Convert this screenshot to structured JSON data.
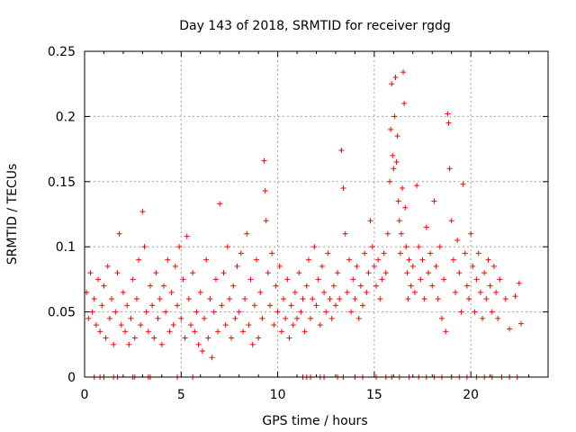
{
  "chart_data": {
    "type": "scatter",
    "title": "Day 143 of 2018, SRMTID for receiver rgdg",
    "xlabel": "GPS time / hours",
    "ylabel": "SRMTID / TECUs",
    "xlim": [
      0,
      24
    ],
    "ylim": [
      0,
      0.25
    ],
    "grid": true,
    "marker": "plus",
    "series": [
      {
        "name": "SRMTID",
        "color": "#ff0000",
        "points": [
          [
            0.1,
            0.065
          ],
          [
            0.2,
            0.045
          ],
          [
            0.3,
            0.08
          ],
          [
            0.4,
            0.05
          ],
          [
            0.5,
            0.06
          ],
          [
            0.6,
            0.04
          ],
          [
            0.7,
            0.075
          ],
          [
            0.8,
            0.035
          ],
          [
            0.9,
            0.055
          ],
          [
            1.0,
            0.07
          ],
          [
            1.1,
            0.03
          ],
          [
            1.2,
            0.085
          ],
          [
            1.3,
            0.045
          ],
          [
            1.4,
            0.06
          ],
          [
            1.5,
            0.025
          ],
          [
            1.6,
            0.05
          ],
          [
            1.7,
            0.08
          ],
          [
            1.8,
            0.11
          ],
          [
            1.9,
            0.04
          ],
          [
            2.0,
            0.065
          ],
          [
            2.1,
            0.035
          ],
          [
            2.2,
            0.055
          ],
          [
            2.3,
            0.025
          ],
          [
            2.4,
            0.045
          ],
          [
            2.5,
            0.075
          ],
          [
            2.6,
            0.03
          ],
          [
            2.7,
            0.06
          ],
          [
            2.8,
            0.09
          ],
          [
            2.9,
            0.04
          ],
          [
            3.0,
            0.127
          ],
          [
            3.1,
            0.1
          ],
          [
            3.2,
            0.05
          ],
          [
            3.3,
            0.035
          ],
          [
            3.4,
            0.07
          ],
          [
            3.5,
            0.055
          ],
          [
            3.6,
            0.03
          ],
          [
            3.7,
            0.08
          ],
          [
            3.8,
            0.045
          ],
          [
            3.9,
            0.06
          ],
          [
            4.0,
            0.025
          ],
          [
            4.1,
            0.07
          ],
          [
            4.2,
            0.05
          ],
          [
            4.3,
            0.09
          ],
          [
            4.4,
            0.035
          ],
          [
            4.5,
            0.065
          ],
          [
            4.6,
            0.04
          ],
          [
            4.7,
            0.085
          ],
          [
            4.8,
            0.055
          ],
          [
            4.9,
            0.1
          ],
          [
            5.0,
            0.045
          ],
          [
            5.1,
            0.075
          ],
          [
            5.2,
            0.03
          ],
          [
            5.3,
            0.108
          ],
          [
            5.4,
            0.06
          ],
          [
            5.5,
            0.04
          ],
          [
            5.6,
            0.08
          ],
          [
            5.7,
            0.035
          ],
          [
            5.8,
            0.05
          ],
          [
            5.9,
            0.025
          ],
          [
            6.0,
            0.065
          ],
          [
            6.1,
            0.02
          ],
          [
            6.2,
            0.045
          ],
          [
            6.3,
            0.09
          ],
          [
            6.4,
            0.03
          ],
          [
            6.5,
            0.06
          ],
          [
            6.6,
            0.015
          ],
          [
            6.7,
            0.05
          ],
          [
            6.8,
            0.075
          ],
          [
            6.9,
            0.035
          ],
          [
            7.0,
            0.133
          ],
          [
            7.1,
            0.055
          ],
          [
            7.2,
            0.08
          ],
          [
            7.3,
            0.04
          ],
          [
            7.4,
            0.1
          ],
          [
            7.5,
            0.06
          ],
          [
            7.6,
            0.03
          ],
          [
            7.7,
            0.07
          ],
          [
            7.8,
            0.045
          ],
          [
            7.9,
            0.085
          ],
          [
            8.0,
            0.05
          ],
          [
            8.1,
            0.095
          ],
          [
            8.2,
            0.035
          ],
          [
            8.3,
            0.06
          ],
          [
            8.4,
            0.11
          ],
          [
            8.5,
            0.04
          ],
          [
            8.6,
            0.075
          ],
          [
            8.7,
            0.025
          ],
          [
            8.8,
            0.055
          ],
          [
            8.9,
            0.09
          ],
          [
            9.0,
            0.03
          ],
          [
            9.1,
            0.065
          ],
          [
            9.2,
            0.045
          ],
          [
            9.3,
            0.166
          ],
          [
            9.35,
            0.143
          ],
          [
            9.4,
            0.12
          ],
          [
            9.5,
            0.08
          ],
          [
            9.6,
            0.055
          ],
          [
            9.7,
            0.095
          ],
          [
            9.8,
            0.04
          ],
          [
            9.9,
            0.07
          ],
          [
            10.0,
            0.05
          ],
          [
            10.1,
            0.085
          ],
          [
            10.2,
            0.035
          ],
          [
            10.3,
            0.06
          ],
          [
            10.4,
            0.045
          ],
          [
            10.5,
            0.075
          ],
          [
            10.6,
            0.03
          ],
          [
            10.7,
            0.055
          ],
          [
            10.8,
            0.04
          ],
          [
            10.9,
            0.065
          ],
          [
            11.0,
            0.045
          ],
          [
            11.1,
            0.08
          ],
          [
            11.2,
            0.05
          ],
          [
            11.3,
            0.06
          ],
          [
            11.4,
            0.035
          ],
          [
            11.5,
            0.07
          ],
          [
            11.6,
            0.09
          ],
          [
            11.7,
            0.045
          ],
          [
            11.8,
            0.06
          ],
          [
            11.9,
            0.1
          ],
          [
            12.0,
            0.055
          ],
          [
            12.1,
            0.075
          ],
          [
            12.2,
            0.04
          ],
          [
            12.3,
            0.085
          ],
          [
            12.4,
            0.065
          ],
          [
            12.5,
            0.05
          ],
          [
            12.6,
            0.095
          ],
          [
            12.7,
            0.06
          ],
          [
            12.8,
            0.045
          ],
          [
            12.9,
            0.07
          ],
          [
            13.0,
            0.055
          ],
          [
            13.1,
            0.08
          ],
          [
            13.2,
            0.06
          ],
          [
            13.3,
            0.174
          ],
          [
            13.4,
            0.145
          ],
          [
            13.5,
            0.11
          ],
          [
            13.6,
            0.065
          ],
          [
            13.7,
            0.09
          ],
          [
            13.8,
            0.05
          ],
          [
            13.9,
            0.075
          ],
          [
            14.0,
            0.06
          ],
          [
            14.1,
            0.085
          ],
          [
            14.2,
            0.045
          ],
          [
            14.3,
            0.07
          ],
          [
            14.4,
            0.055
          ],
          [
            14.5,
            0.095
          ],
          [
            14.6,
            0.065
          ],
          [
            14.7,
            0.08
          ],
          [
            14.8,
            0.12
          ],
          [
            14.9,
            0.1
          ],
          [
            15.0,
            0.085
          ],
          [
            15.1,
            0.07
          ],
          [
            15.2,
            0.09
          ],
          [
            15.3,
            0.06
          ],
          [
            15.4,
            0.075
          ],
          [
            15.5,
            0.095
          ],
          [
            15.6,
            0.08
          ],
          [
            15.7,
            0.11
          ],
          [
            15.8,
            0.15
          ],
          [
            15.85,
            0.19
          ],
          [
            15.9,
            0.225
          ],
          [
            15.95,
            0.17
          ],
          [
            16.0,
            0.16
          ],
          [
            16.05,
            0.2
          ],
          [
            16.1,
            0.23
          ],
          [
            16.15,
            0.165
          ],
          [
            16.2,
            0.185
          ],
          [
            16.25,
            0.135
          ],
          [
            16.3,
            0.12
          ],
          [
            16.35,
            0.095
          ],
          [
            16.4,
            0.11
          ],
          [
            16.45,
            0.145
          ],
          [
            16.5,
            0.234
          ],
          [
            16.55,
            0.21
          ],
          [
            16.6,
            0.13
          ],
          [
            16.65,
            0.1
          ],
          [
            16.7,
            0.08
          ],
          [
            16.75,
            0.06
          ],
          [
            16.8,
            0.09
          ],
          [
            16.9,
            0.07
          ],
          [
            17.0,
            0.085
          ],
          [
            17.1,
            0.065
          ],
          [
            17.2,
            0.147
          ],
          [
            17.3,
            0.1
          ],
          [
            17.4,
            0.075
          ],
          [
            17.5,
            0.09
          ],
          [
            17.6,
            0.06
          ],
          [
            17.7,
            0.115
          ],
          [
            17.8,
            0.08
          ],
          [
            17.9,
            0.095
          ],
          [
            18.0,
            0.07
          ],
          [
            18.1,
            0.135
          ],
          [
            18.2,
            0.085
          ],
          [
            18.3,
            0.06
          ],
          [
            18.4,
            0.1
          ],
          [
            18.5,
            0.045
          ],
          [
            18.6,
            0.075
          ],
          [
            18.7,
            0.035
          ],
          [
            18.8,
            0.202
          ],
          [
            18.85,
            0.195
          ],
          [
            18.9,
            0.16
          ],
          [
            19.0,
            0.12
          ],
          [
            19.1,
            0.09
          ],
          [
            19.2,
            0.065
          ],
          [
            19.3,
            0.105
          ],
          [
            19.4,
            0.08
          ],
          [
            19.5,
            0.05
          ],
          [
            19.6,
            0.148
          ],
          [
            19.7,
            0.095
          ],
          [
            19.8,
            0.07
          ],
          [
            19.9,
            0.06
          ],
          [
            20.0,
            0.11
          ],
          [
            20.1,
            0.085
          ],
          [
            20.2,
            0.05
          ],
          [
            20.3,
            0.075
          ],
          [
            20.4,
            0.095
          ],
          [
            20.5,
            0.065
          ],
          [
            20.6,
            0.045
          ],
          [
            20.7,
            0.08
          ],
          [
            20.8,
            0.06
          ],
          [
            20.9,
            0.09
          ],
          [
            21.0,
            0.07
          ],
          [
            21.1,
            0.05
          ],
          [
            21.2,
            0.085
          ],
          [
            21.3,
            0.065
          ],
          [
            21.4,
            0.045
          ],
          [
            21.5,
            0.075
          ],
          [
            21.8,
            0.06
          ],
          [
            22.0,
            0.037
          ],
          [
            22.3,
            0.062
          ],
          [
            22.5,
            0.072
          ],
          [
            22.6,
            0.041
          ],
          [
            0.5,
            0.0
          ],
          [
            0.8,
            0.0
          ],
          [
            1.0,
            0.0
          ],
          [
            1.5,
            0.0
          ],
          [
            1.7,
            0.0
          ],
          [
            2.5,
            0.0
          ],
          [
            2.6,
            0.0
          ],
          [
            3.3,
            0.0
          ],
          [
            3.4,
            0.0
          ],
          [
            4.8,
            0.0
          ],
          [
            5.6,
            0.0
          ],
          [
            11.3,
            0.0
          ],
          [
            11.5,
            0.0
          ],
          [
            11.7,
            0.0
          ],
          [
            12.2,
            0.0
          ],
          [
            12.4,
            0.0
          ],
          [
            13.1,
            0.0
          ],
          [
            13.4,
            0.0
          ],
          [
            14.0,
            0.0
          ],
          [
            14.4,
            0.0
          ],
          [
            15.1,
            0.0
          ],
          [
            15.6,
            0.0
          ],
          [
            15.9,
            0.0
          ],
          [
            16.3,
            0.0
          ],
          [
            16.8,
            0.0
          ],
          [
            17.3,
            0.0
          ],
          [
            17.7,
            0.0
          ],
          [
            18.1,
            0.0
          ],
          [
            18.5,
            0.0
          ],
          [
            19.0,
            0.0
          ],
          [
            19.4,
            0.0
          ],
          [
            19.8,
            0.0
          ],
          [
            20.3,
            0.0
          ],
          [
            20.7,
            0.0
          ],
          [
            21.1,
            0.0
          ],
          [
            21.6,
            0.0
          ],
          [
            22.0,
            0.0
          ],
          [
            22.4,
            0.0
          ]
        ]
      }
    ],
    "x_ticks": [
      0,
      5,
      10,
      15,
      20
    ],
    "x_tick_labels": [
      "0",
      "5",
      "10",
      "15",
      "20"
    ],
    "y_ticks": [
      0,
      0.05,
      0.1,
      0.15,
      0.2,
      0.25
    ],
    "y_tick_labels": [
      "0",
      "0.05",
      "0.1",
      "0.15",
      "0.2",
      "0.25"
    ]
  }
}
